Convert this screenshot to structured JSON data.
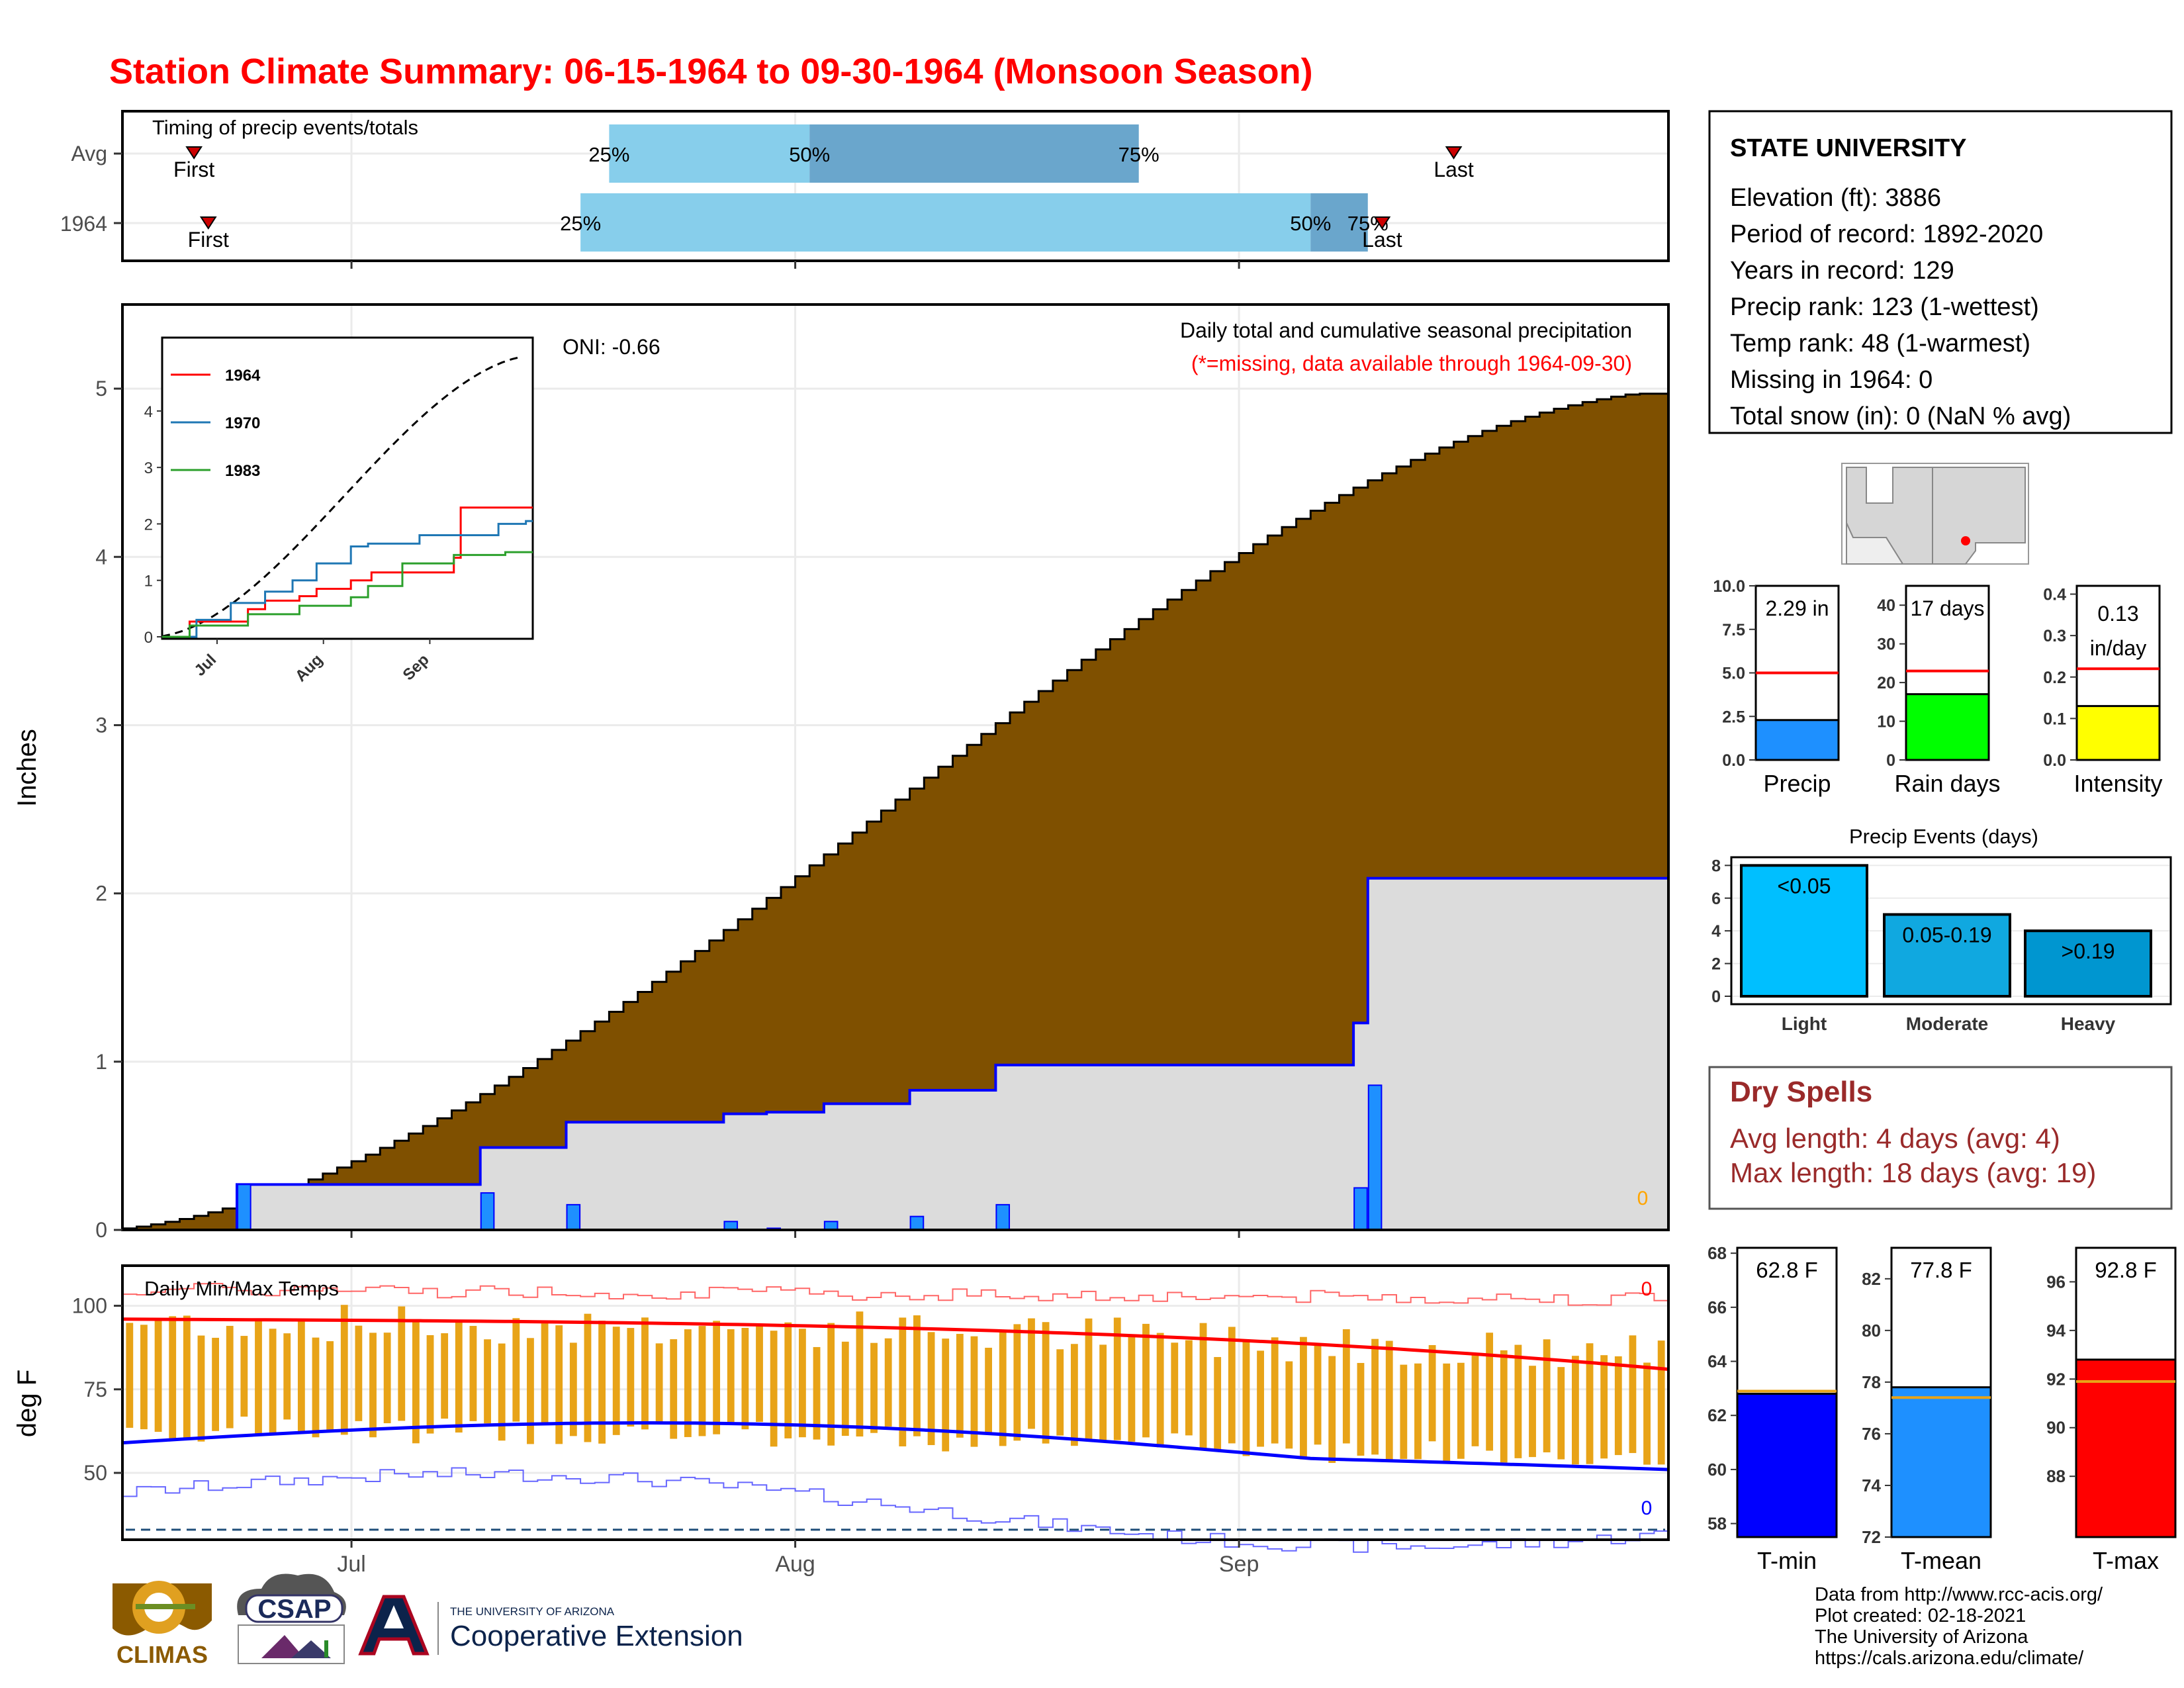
{
  "title": "Station Climate Summary: 06-15-1964 to 09-30-1964 (Monsoon Season)",
  "colors": {
    "title": "#ff0000",
    "brown": "#7f5000",
    "blue": "#0000ff",
    "precip_bar": "#1e90ff",
    "light_blue": "#87ceeb",
    "mid_blue": "#6aa6cc",
    "orange": "#e8a317",
    "dry": "#9a2a2a",
    "red": "#ff0000",
    "green": "#00ff00",
    "yellow": "#ffff00",
    "tmean": "#1e90ff"
  },
  "month_labels": [
    "Jul",
    "Aug",
    "Sep"
  ],
  "timing": {
    "title": "Timing of precip events/totals",
    "rows": [
      "Avg",
      "1964"
    ],
    "avg": {
      "first": "06-20",
      "last": "09-16",
      "p25": "07-19",
      "p50": "08-02",
      "p75": "08-25"
    },
    "y1964": {
      "first": "06-21",
      "last": "09-11",
      "p25": "07-17",
      "p50": "09-06",
      "p75": "09-10"
    },
    "labels": {
      "first": "First",
      "last": "Last",
      "p25": "25%",
      "p50": "50%",
      "p75": "75%"
    }
  },
  "precip_panel": {
    "ylabel": "Inches",
    "ylim": [
      0,
      5.5
    ],
    "yticks": [
      0,
      1,
      2,
      3,
      4,
      5
    ],
    "title": "Daily total and cumulative seasonal precipitation",
    "subtitle": "(*=missing, data available through 1964-09-30)",
    "oni": "ONI: -0.66",
    "missing_count": "0",
    "avg_cum_end": 4.97,
    "daily_1964": [
      {
        "date": "06-23",
        "value": 0.27
      },
      {
        "date": "07-10",
        "value": 0.22
      },
      {
        "date": "07-16",
        "value": 0.15
      },
      {
        "date": "07-27",
        "value": 0.05
      },
      {
        "date": "07-30",
        "value": 0.01
      },
      {
        "date": "08-03",
        "value": 0.05
      },
      {
        "date": "08-09",
        "value": 0.08
      },
      {
        "date": "08-15",
        "value": 0.15
      },
      {
        "date": "09-09",
        "value": 0.25
      },
      {
        "date": "09-10",
        "value": 0.86
      }
    ],
    "cum_1964_end": 2.29
  },
  "inset": {
    "yticks": [
      0,
      1,
      2,
      3,
      4
    ],
    "xticks": [
      "Jul",
      "Aug",
      "Sep"
    ],
    "legend": [
      {
        "name": "1964",
        "color": "#ff0000"
      },
      {
        "name": "1970",
        "color": "#1f77b4"
      },
      {
        "name": "1983",
        "color": "#2ca02c"
      }
    ]
  },
  "temp_panel": {
    "ylabel": "deg F",
    "title": "Daily Min/Max Temps",
    "yticks": [
      50,
      75,
      100
    ],
    "ylim": [
      30,
      112
    ],
    "missing_max": "0",
    "missing_min": "0",
    "record_low_line": 33
  },
  "station": {
    "name": "STATE UNIVERSITY",
    "lines": [
      "Elevation (ft): 3886",
      "Period of record: 1892-2020",
      "Years in record: 129",
      "Precip rank: 123 (1-wettest)",
      "Temp rank: 48 (1-warmest)",
      "Missing in 1964: 0",
      "Total snow (in): 0 (NaN % avg)"
    ]
  },
  "mini_bars": [
    {
      "label": "Precip",
      "value_text": "2.29 in",
      "value": 2.29,
      "avg": 5.0,
      "ymax": 10,
      "ticks": [
        "0.0",
        "2.5",
        "5.0",
        "7.5",
        "10.0"
      ],
      "color": "#1e90ff"
    },
    {
      "label": "Rain days",
      "value_text": "17 days",
      "value": 17,
      "avg": 23,
      "ymax": 45,
      "ticks": [
        "0",
        "10",
        "20",
        "30",
        "40"
      ],
      "color": "#00ff00"
    },
    {
      "label": "Intensity",
      "value_text_1": "0.13",
      "value_text_2": "in/day",
      "value": 0.13,
      "avg": 0.22,
      "ymax": 0.42,
      "ticks": [
        "0.0",
        "0.1",
        "0.2",
        "0.3",
        "0.4"
      ],
      "color": "#ffff00"
    }
  ],
  "events": {
    "title": "Precip Events (days)",
    "ticks": [
      "0",
      "2",
      "4",
      "6",
      "8"
    ],
    "ymax": 8.5,
    "bars": [
      {
        "label": "Light",
        "value_label": "<0.05",
        "value": 8,
        "color": "#00bfff"
      },
      {
        "label": "Moderate",
        "value_label": "0.05-0.19",
        "value": 5,
        "color": "#10a8e0"
      },
      {
        "label": "Heavy",
        "value_label": ">0.19",
        "value": 4,
        "color": "#0096d0"
      }
    ]
  },
  "dry_spells": {
    "title": "Dry Spells",
    "avg_line": "Avg length: 4 days (avg: 4)",
    "max_line": "Max length: 18 days (avg: 19)"
  },
  "temp_bars": [
    {
      "label": "T-min",
      "value_text": "62.8 F",
      "value": 62.8,
      "avg": 62.9,
      "ymin": 57.5,
      "ymax": 68.2,
      "ticks": [
        "58",
        "60",
        "62",
        "64",
        "66",
        "68"
      ],
      "color": "#0000ff"
    },
    {
      "label": "T-mean",
      "value_text": "77.8 F",
      "value": 77.8,
      "avg": 77.4,
      "ymin": 72,
      "ymax": 83.2,
      "ticks": [
        "72",
        "74",
        "76",
        "78",
        "80",
        "82"
      ],
      "color": "#1e90ff"
    },
    {
      "label": "T-max",
      "value_text": "92.8 F",
      "value": 92.8,
      "avg": 91.9,
      "ymin": 85.5,
      "ymax": 97.4,
      "ticks": [
        "88",
        "90",
        "92",
        "94",
        "96"
      ],
      "color": "#ff0000"
    }
  ],
  "credits": [
    "Data from http://www.rcc-acis.org/",
    "Plot created: 02-18-2021",
    "The University of Arizona",
    "https://cals.arizona.edu/climate/"
  ],
  "logos": {
    "climas": "CLIMAS",
    "csap": "CSAP",
    "ua_small": "THE UNIVERSITY OF ARIZONA",
    "coop": "Cooperative Extension"
  }
}
